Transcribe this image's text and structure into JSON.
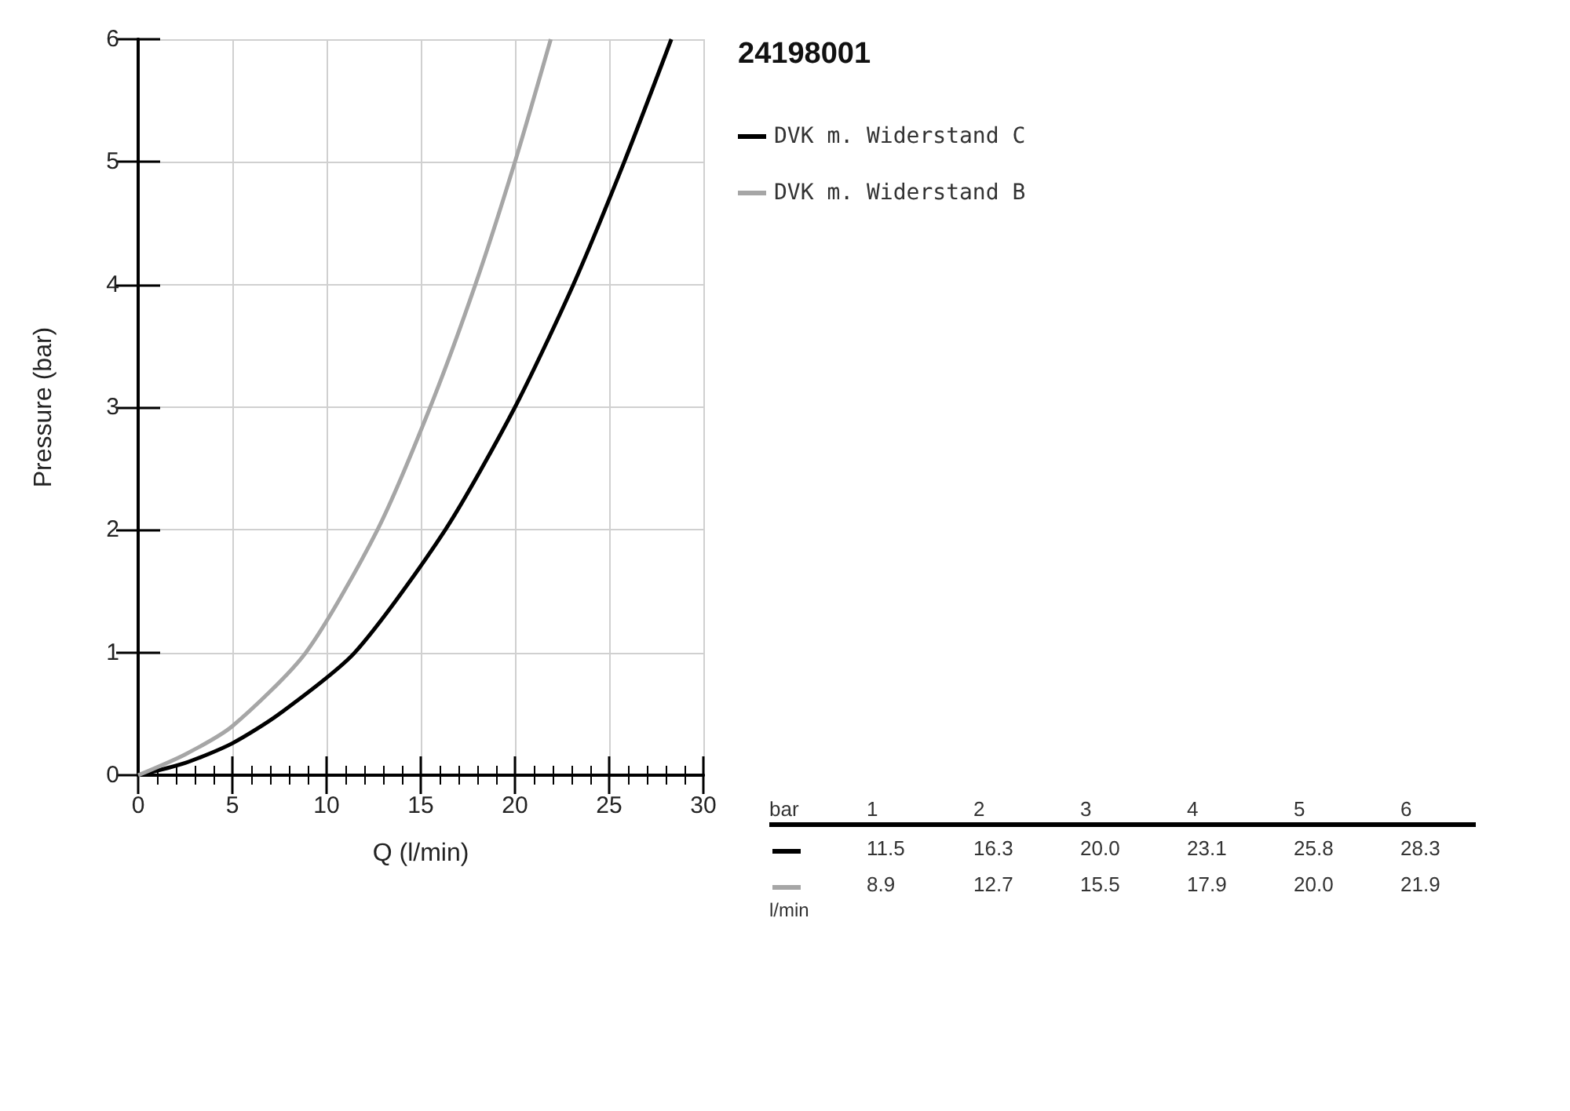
{
  "chart_data": {
    "type": "line",
    "title": "24198001",
    "xlabel": "Q (l/min)",
    "ylabel": "Pressure (bar)",
    "xlim": [
      0,
      30
    ],
    "xticks": [
      0,
      5,
      10,
      15,
      20,
      25,
      30
    ],
    "ylim": [
      0,
      6
    ],
    "yticks": [
      0,
      1,
      2,
      3,
      4,
      5,
      6
    ],
    "grid": true,
    "legend": "right",
    "series": [
      {
        "name": "DVK m. Widerstand C",
        "color": "#000000",
        "x": [
          0,
          2.5,
          5,
          7.5,
          11.5,
          16.3,
          20,
          23.1,
          25.8,
          28.3
        ],
        "values": [
          0,
          0.1,
          0.26,
          0.5,
          1,
          2,
          3,
          4,
          5,
          6
        ]
      },
      {
        "name": "DVK m. Widerstand B",
        "color": "#a6a6a6",
        "x": [
          0,
          2.5,
          5,
          8.9,
          12.7,
          15.5,
          17.9,
          20,
          21.9
        ],
        "values": [
          0,
          0.17,
          0.4,
          1,
          2,
          3,
          4,
          5,
          6
        ]
      }
    ],
    "annotations": [
      "bar",
      "1",
      "2",
      "3",
      "4",
      "5",
      "6",
      "l/min",
      "11.5",
      "16.3",
      "20.0",
      "23.1",
      "25.8",
      "28.3",
      "8.9",
      "12.7",
      "15.5",
      "17.9",
      "20.0",
      "21.9"
    ]
  }
}
